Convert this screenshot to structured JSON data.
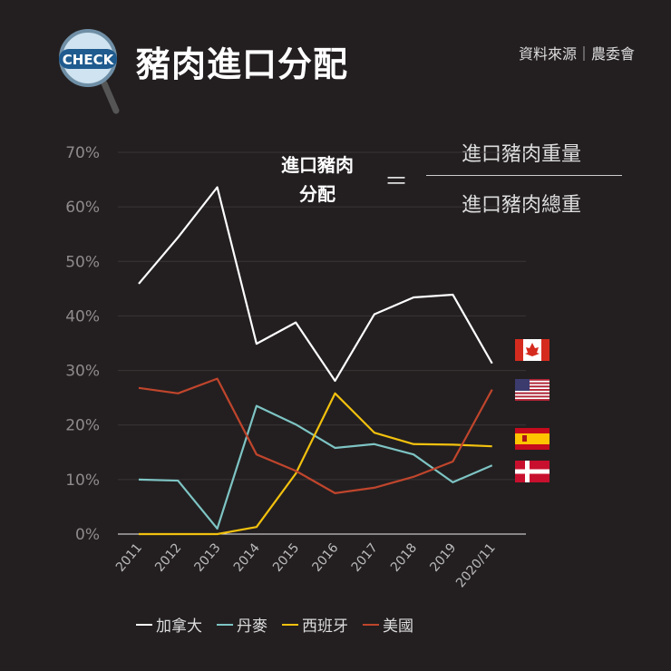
{
  "header": {
    "title": "豬肉進口分配",
    "source": "資料來源｜農委會",
    "logo_text": "CHECK"
  },
  "formula": {
    "lhs_line1": "進口豬肉",
    "lhs_line2": "分配",
    "equals": "＝",
    "numerator": "進口豬肉重量",
    "denominator": "進口豬肉總重"
  },
  "chart_data": {
    "type": "line",
    "title": "",
    "x": [
      "2011",
      "2012",
      "2013",
      "2014",
      "2015",
      "2016",
      "2017",
      "2018",
      "2019",
      "2020/11"
    ],
    "ylim": [
      0,
      70
    ],
    "yticks": [
      "0%",
      "10%",
      "20%",
      "30%",
      "40%",
      "50%",
      "60%",
      "70%"
    ],
    "grid": true,
    "legend_placement": "bottom",
    "series": [
      {
        "name": "加拿大",
        "color": "#ffffff",
        "flag": "canada",
        "values": [
          45.9,
          54.4,
          63.6,
          34.9,
          38.8,
          28.1,
          40.3,
          43.4,
          43.9,
          31.3
        ]
      },
      {
        "name": "丹麥",
        "color": "#7ec4c4",
        "flag": "denmark",
        "values": [
          10.0,
          9.8,
          1.0,
          23.5,
          20.1,
          15.8,
          16.5,
          14.6,
          9.5,
          12.6
        ]
      },
      {
        "name": "西班牙",
        "color": "#f2c10e",
        "flag": "spain",
        "values": [
          0,
          0,
          0,
          1.3,
          11.1,
          25.8,
          18.6,
          16.5,
          16.4,
          16.1
        ]
      },
      {
        "name": "美國",
        "color": "#c0452c",
        "flag": "usa",
        "values": [
          26.8,
          25.8,
          28.5,
          14.6,
          11.6,
          7.5,
          8.5,
          10.5,
          13.3,
          26.5
        ]
      }
    ]
  }
}
